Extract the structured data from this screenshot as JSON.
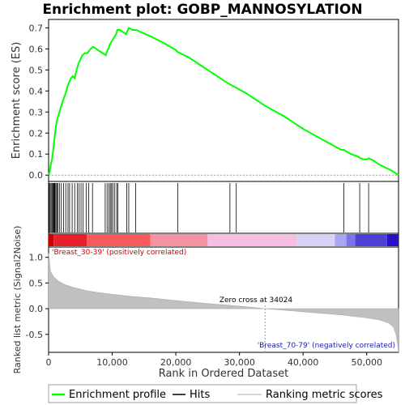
{
  "chart_data": {
    "type": "line",
    "title": "Enrichment plot: GOBP_MANNOSYLATION",
    "top_panel": {
      "ylabel": "Enrichment score (ES)",
      "ylim": [
        -0.03,
        0.74
      ],
      "yticks": [
        0.0,
        0.1,
        0.2,
        0.3,
        0.4,
        0.5,
        0.6,
        0.7
      ],
      "ytick_labels": [
        "0.0",
        "0.1",
        "0.2",
        "0.3",
        "0.4",
        "0.5",
        "0.6",
        "0.7"
      ],
      "series": [
        {
          "name": "Enrichment profile",
          "color": "#00ff00",
          "x": [
            0,
            200,
            350,
            500,
            650,
            800,
            950,
            1100,
            1250,
            1400,
            1600,
            1800,
            2000,
            2200,
            2450,
            2700,
            2950,
            3200,
            3500,
            3800,
            4100,
            4400,
            4700,
            5000,
            5300,
            5700,
            6100,
            6600,
            7000,
            7500,
            8000,
            8500,
            9000,
            9200,
            9400,
            9600,
            9800,
            10000,
            10200,
            10400,
            10600,
            10800,
            11200,
            11700,
            12200,
            12600,
            13200,
            13800,
            14500,
            16000,
            18000,
            20000,
            20300,
            22000,
            25000,
            28000,
            31000,
            34000,
            37000,
            40000,
            43000,
            46000,
            46400,
            47500,
            48500,
            49000,
            49500,
            50000,
            50300,
            51000,
            52000,
            53000,
            54000,
            55000
          ],
          "y": [
            0.0,
            0.02,
            0.05,
            0.07,
            0.1,
            0.14,
            0.18,
            0.22,
            0.25,
            0.27,
            0.29,
            0.31,
            0.33,
            0.35,
            0.37,
            0.39,
            0.42,
            0.44,
            0.46,
            0.47,
            0.46,
            0.5,
            0.53,
            0.55,
            0.57,
            0.58,
            0.58,
            0.6,
            0.61,
            0.6,
            0.59,
            0.58,
            0.57,
            0.59,
            0.6,
            0.62,
            0.63,
            0.64,
            0.65,
            0.66,
            0.67,
            0.69,
            0.69,
            0.68,
            0.67,
            0.7,
            0.69,
            0.69,
            0.68,
            0.66,
            0.63,
            0.595,
            0.585,
            0.56,
            0.5,
            0.44,
            0.39,
            0.33,
            0.28,
            0.22,
            0.17,
            0.12,
            0.12,
            0.1,
            0.09,
            0.08,
            0.075,
            0.075,
            0.08,
            0.07,
            0.05,
            0.035,
            0.02,
            0.0
          ]
        }
      ]
    },
    "hits": [
      100,
      250,
      400,
      550,
      700,
      800,
      900,
      1000,
      1150,
      1300,
      1450,
      1700,
      2000,
      2350,
      2700,
      3050,
      3300,
      3700,
      4100,
      4500,
      4800,
      5100,
      5400,
      5900,
      6300,
      6900,
      8900,
      9200,
      9500,
      9700,
      9900,
      10100,
      10400,
      10700,
      10900,
      12300,
      12600,
      13700,
      20300,
      28500,
      29500,
      46400,
      48900,
      50300
    ],
    "bottom_panel": {
      "ylabel": "Ranked list metric (Signal2Noise)",
      "ylim": [
        -0.85,
        1.2
      ],
      "yticks": [
        -0.5,
        0.0,
        0.5,
        1.0
      ],
      "ytick_labels": [
        "-0.5",
        "0.0",
        "0.5",
        "1.0"
      ],
      "metric_x": [
        0,
        300,
        800,
        1500,
        2500,
        4000,
        6000,
        8000,
        10000,
        13000,
        16000,
        20000,
        25000,
        30000,
        34024,
        38000,
        42000,
        46000,
        48000,
        50000,
        52000,
        53500,
        54200,
        54600,
        54900,
        55000
      ],
      "metric_y": [
        1.08,
        0.72,
        0.62,
        0.54,
        0.47,
        0.41,
        0.35,
        0.31,
        0.28,
        0.24,
        0.21,
        0.16,
        0.1,
        0.05,
        0.0,
        -0.04,
        -0.08,
        -0.12,
        -0.15,
        -0.18,
        -0.22,
        -0.28,
        -0.36,
        -0.5,
        -0.72,
        -0.85
      ]
    },
    "xlabel": "Rank in Ordered Dataset",
    "xlim": [
      0,
      55000
    ],
    "xticks": [
      0,
      10000,
      20000,
      30000,
      40000,
      50000
    ],
    "xtick_labels": [
      "0",
      "10,000",
      "20,000",
      "30,000",
      "40,000",
      "50,000"
    ],
    "annotations": {
      "positive": "'Breast_30-39' (positively correlated)",
      "negative": "'Breast_70-79' (negatively correlated)",
      "zero_cross": "Zero cross at 34024",
      "zero_cross_x": 34024
    },
    "color_bar": [
      {
        "from": 0,
        "to": 800,
        "color": "#cc0000"
      },
      {
        "from": 800,
        "to": 6000,
        "color": "#e8202c"
      },
      {
        "from": 6000,
        "to": 16000,
        "color": "#f75a5a"
      },
      {
        "from": 16000,
        "to": 25000,
        "color": "#f591a0"
      },
      {
        "from": 25000,
        "to": 39000,
        "color": "#f7bde3"
      },
      {
        "from": 39000,
        "to": 45000,
        "color": "#d8d2f7"
      },
      {
        "from": 45000,
        "to": 46800,
        "color": "#a9a6f0"
      },
      {
        "from": 46800,
        "to": 48200,
        "color": "#7a74ea"
      },
      {
        "from": 48200,
        "to": 53200,
        "color": "#4e3fd6"
      },
      {
        "from": 53200,
        "to": 55000,
        "color": "#2a10c8"
      }
    ],
    "legend": [
      {
        "label": "Enrichment profile",
        "color": "#00ff00",
        "kind": "line"
      },
      {
        "label": "Hits",
        "color": "#000000",
        "kind": "line"
      },
      {
        "label": "Ranking metric scores",
        "color": "#cccccc",
        "kind": "line"
      }
    ]
  }
}
